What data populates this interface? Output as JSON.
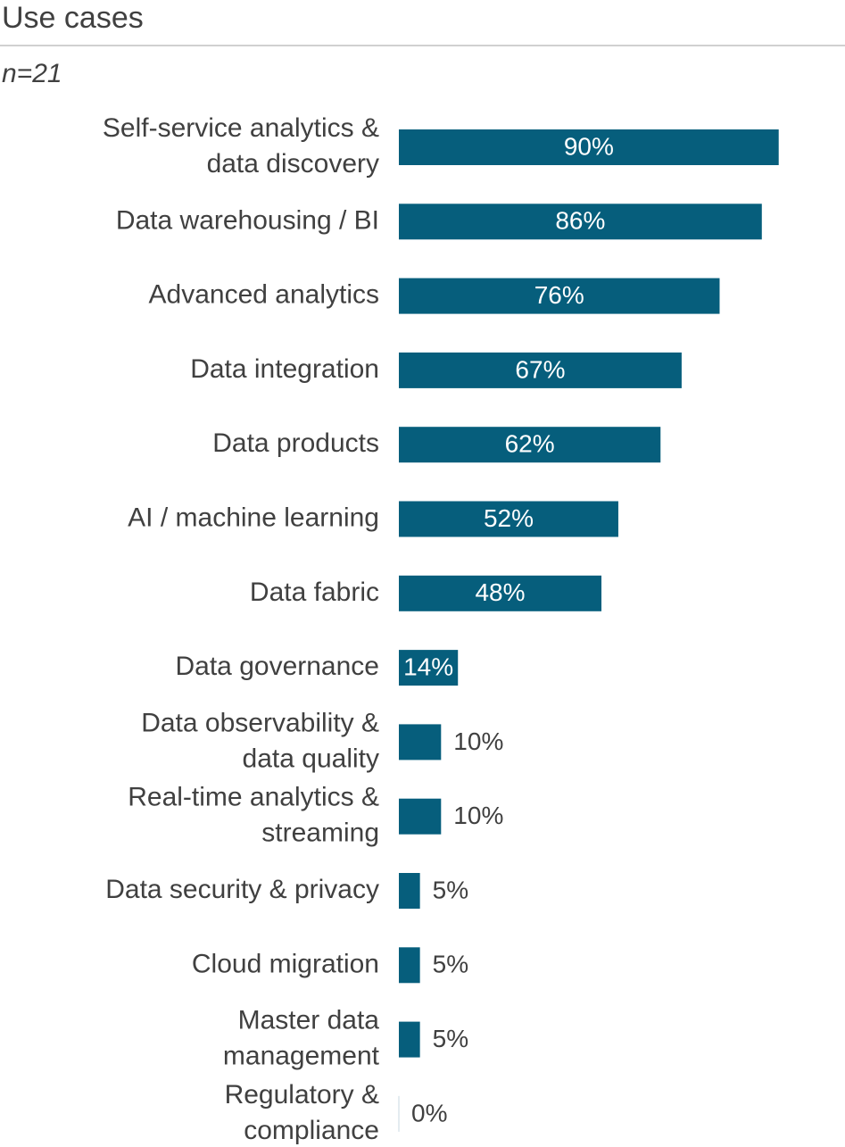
{
  "chart_data": {
    "type": "bar",
    "orientation": "horizontal",
    "title": "Use cases",
    "subtitle": "n=21",
    "categories": [
      "Self-service analytics &\ndata discovery",
      "Data warehousing / BI",
      "Advanced analytics",
      "Data integration",
      "Data products",
      "AI / machine learning",
      "Data fabric",
      "Data governance",
      "Data observability &\ndata quality",
      "Real-time analytics &\nstreaming",
      "Data security & privacy",
      "Cloud migration",
      "Master data\nmanagement",
      "Regulatory &\ncompliance"
    ],
    "values": [
      90,
      86,
      76,
      67,
      62,
      52,
      48,
      14,
      10,
      10,
      5,
      5,
      5,
      0
    ],
    "value_labels": [
      "90%",
      "86%",
      "76%",
      "67%",
      "62%",
      "52%",
      "48%",
      "14%",
      "10%",
      "10%",
      "5%",
      "5%",
      "5%",
      "0%"
    ],
    "color": "#065e7c",
    "xlim": [
      0,
      100
    ]
  }
}
